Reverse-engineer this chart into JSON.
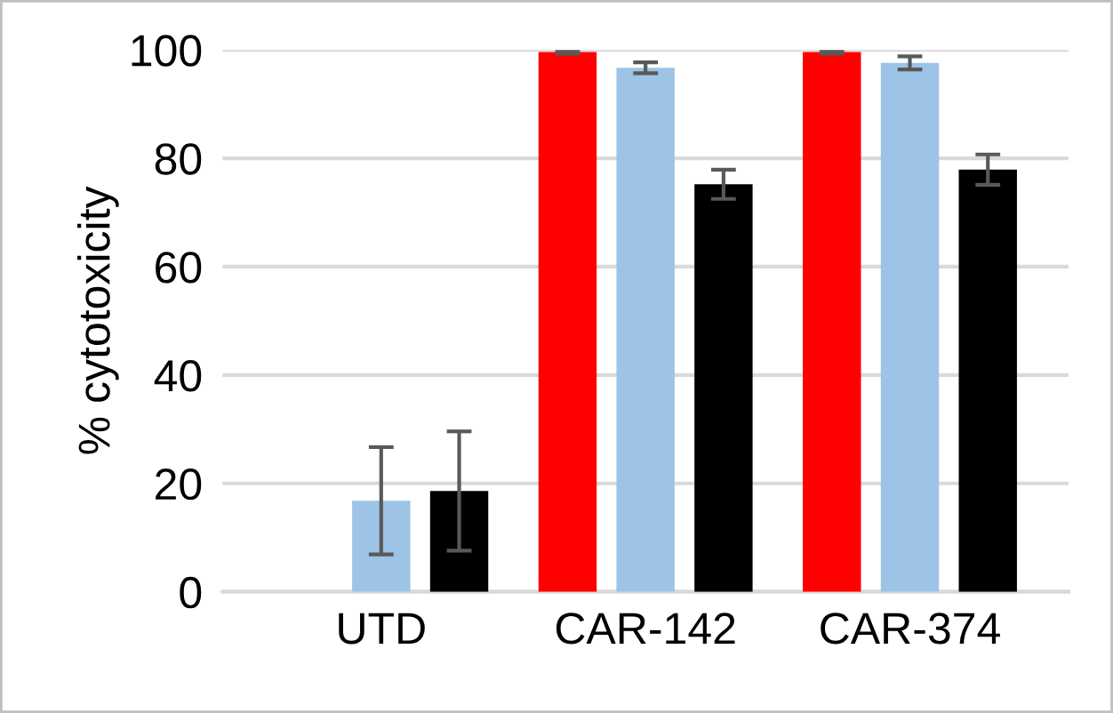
{
  "chart_data": {
    "type": "bar",
    "ylabel": "% cytotoxicity",
    "categories": [
      "UTD",
      "CAR-142",
      "CAR-374"
    ],
    "series": [
      {
        "color": "#ff0000",
        "values": [
          0,
          99.6,
          99.6
        ],
        "errors": [
          null,
          0.3,
          0.3
        ]
      },
      {
        "color": "#9dc3e6",
        "values": [
          16.8,
          96.7,
          97.6
        ],
        "errors": [
          9.9,
          1.0,
          1.2
        ]
      },
      {
        "color": "#000000",
        "values": [
          18.6,
          75.2,
          77.9
        ],
        "errors": [
          11,
          2.7,
          2.8
        ]
      }
    ],
    "ylim": [
      0,
      100
    ],
    "yticks": [
      0,
      20,
      40,
      60,
      80,
      100
    ],
    "grid": "y",
    "legend": false
  }
}
